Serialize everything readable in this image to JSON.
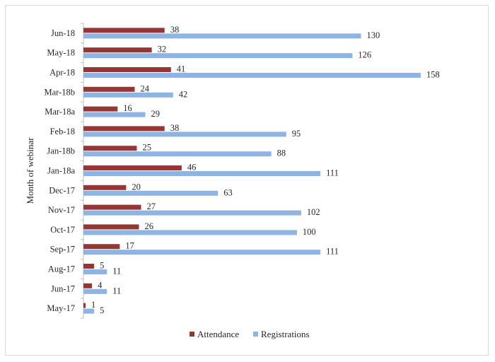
{
  "chart_data": {
    "type": "bar",
    "orientation": "horizontal",
    "ylabel": "Month of webinar",
    "categories": [
      "Jun-18",
      "May-18",
      "Apr-18",
      "Mar-18b",
      "Mar-18a",
      "Feb-18",
      "Jan-18b",
      "Jan-18a",
      "Dec-17",
      "Nov-17",
      "Oct-17",
      "Sep-17",
      "Aug-17",
      "Jun-17",
      "May-17"
    ],
    "series": [
      {
        "name": "Attendance",
        "color": "#943634",
        "values": [
          38,
          32,
          41,
          24,
          16,
          38,
          25,
          46,
          20,
          27,
          26,
          17,
          5,
          4,
          1
        ]
      },
      {
        "name": "Registrations",
        "color": "#8eb4e3",
        "values": [
          130,
          126,
          158,
          42,
          29,
          95,
          88,
          111,
          63,
          102,
          100,
          111,
          11,
          11,
          5
        ]
      }
    ],
    "xlim": [
      0,
      160
    ],
    "grid": false,
    "data_labels": true,
    "legend_position": "bottom"
  }
}
